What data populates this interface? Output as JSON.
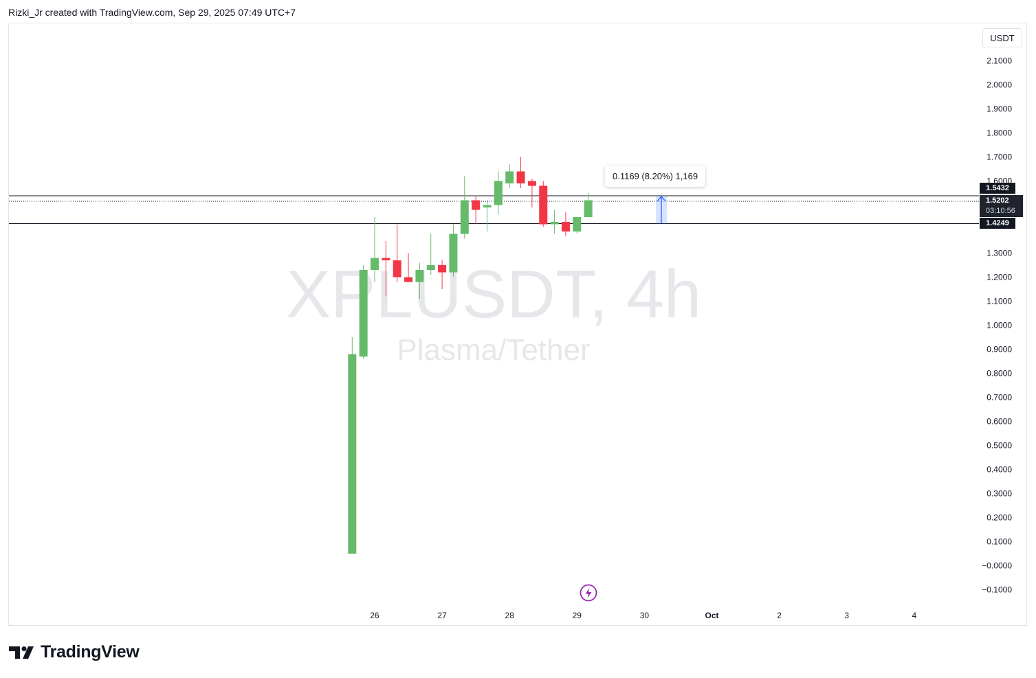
{
  "header": {
    "caption": "Rizki_Jr created with TradingView.com, Sep 29, 2025 07:49 UTC+7"
  },
  "watermark": {
    "symbol": "XPLUSDT, 4h",
    "description": "Plasma/Tether"
  },
  "currency": "USDT",
  "colors": {
    "up": "#66bb6a",
    "down": "#f23645",
    "text": "#131722",
    "tag_bg": "#131722",
    "measure_fill": "#2962ff",
    "lightning": "#9c27b0"
  },
  "price_axis": {
    "labels": [
      "2.1000",
      "2.0000",
      "1.9000",
      "1.8000",
      "1.7000",
      "1.6000",
      "1.3000",
      "1.2000",
      "1.1000",
      "1.0000",
      "0.9000",
      "0.8000",
      "0.7000",
      "0.6000",
      "0.5000",
      "0.4000",
      "0.3000",
      "0.2000",
      "0.1000",
      "−0.0000",
      "−0.1000"
    ]
  },
  "time_axis": {
    "labels": [
      "26",
      "27",
      "28",
      "29",
      "30",
      "Oct",
      "2",
      "3",
      "4"
    ]
  },
  "horizontal_lines": {
    "upper": "1.5432",
    "lower": "1.4249"
  },
  "current_price": {
    "value": "1.5202",
    "countdown": "03:10:56"
  },
  "measure": {
    "text": "0.1169 (8.20%) 1,169"
  },
  "brand": {
    "name": "TradingView"
  },
  "chart_data": {
    "type": "candlestick",
    "timeframe": "4h",
    "ylim": [
      -0.1,
      2.1
    ],
    "candles": [
      {
        "o": 0.05,
        "h": 0.95,
        "l": 0.05,
        "c": 0.88
      },
      {
        "o": 0.87,
        "h": 1.25,
        "l": 0.86,
        "c": 1.23
      },
      {
        "o": 1.23,
        "h": 1.45,
        "l": 1.18,
        "c": 1.28
      },
      {
        "o": 1.28,
        "h": 1.35,
        "l": 1.12,
        "c": 1.27
      },
      {
        "o": 1.27,
        "h": 1.42,
        "l": 1.18,
        "c": 1.2
      },
      {
        "o": 1.2,
        "h": 1.3,
        "l": 1.18,
        "c": 1.18
      },
      {
        "o": 1.18,
        "h": 1.26,
        "l": 1.11,
        "c": 1.23
      },
      {
        "o": 1.23,
        "h": 1.38,
        "l": 1.21,
        "c": 1.25
      },
      {
        "o": 1.25,
        "h": 1.27,
        "l": 1.15,
        "c": 1.22
      },
      {
        "o": 1.22,
        "h": 1.42,
        "l": 1.2,
        "c": 1.38
      },
      {
        "o": 1.38,
        "h": 1.62,
        "l": 1.36,
        "c": 1.52
      },
      {
        "o": 1.52,
        "h": 1.54,
        "l": 1.42,
        "c": 1.48
      },
      {
        "o": 1.49,
        "h": 1.52,
        "l": 1.39,
        "c": 1.5
      },
      {
        "o": 1.5,
        "h": 1.64,
        "l": 1.46,
        "c": 1.6
      },
      {
        "o": 1.59,
        "h": 1.67,
        "l": 1.57,
        "c": 1.64
      },
      {
        "o": 1.64,
        "h": 1.7,
        "l": 1.57,
        "c": 1.59
      },
      {
        "o": 1.6,
        "h": 1.61,
        "l": 1.49,
        "c": 1.58
      },
      {
        "o": 1.58,
        "h": 1.6,
        "l": 1.41,
        "c": 1.42
      },
      {
        "o": 1.42,
        "h": 1.48,
        "l": 1.38,
        "c": 1.43
      },
      {
        "o": 1.43,
        "h": 1.47,
        "l": 1.37,
        "c": 1.39
      },
      {
        "o": 1.39,
        "h": 1.44,
        "l": 1.38,
        "c": 1.45
      },
      {
        "o": 1.45,
        "h": 1.55,
        "l": 1.45,
        "c": 1.52
      }
    ]
  }
}
